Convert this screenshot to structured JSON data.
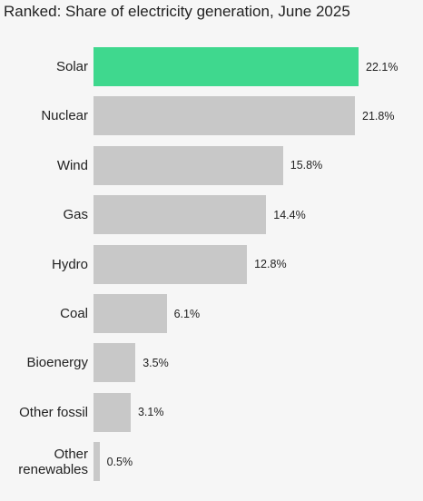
{
  "chart_data": {
    "type": "hbar",
    "title": "Ranked: Share of electricity generation, June 2025",
    "categories": [
      "Solar",
      "Nuclear",
      "Wind",
      "Gas",
      "Hydro",
      "Coal",
      "Bioenergy",
      "Other fossil",
      "Other renewables"
    ],
    "values": [
      22.1,
      21.8,
      15.8,
      14.4,
      12.8,
      6.1,
      3.5,
      3.1,
      0.5
    ],
    "value_labels": [
      "22.1%",
      "21.8%",
      "15.8%",
      "14.4%",
      "12.8%",
      "6.1%",
      "3.5%",
      "3.1%",
      "0.5%"
    ],
    "colors": [
      "#3fd88e",
      "#c8c8c8",
      "#c8c8c8",
      "#c8c8c8",
      "#c8c8c8",
      "#c8c8c8",
      "#c8c8c8",
      "#c8c8c8",
      "#c8c8c8"
    ]
  }
}
